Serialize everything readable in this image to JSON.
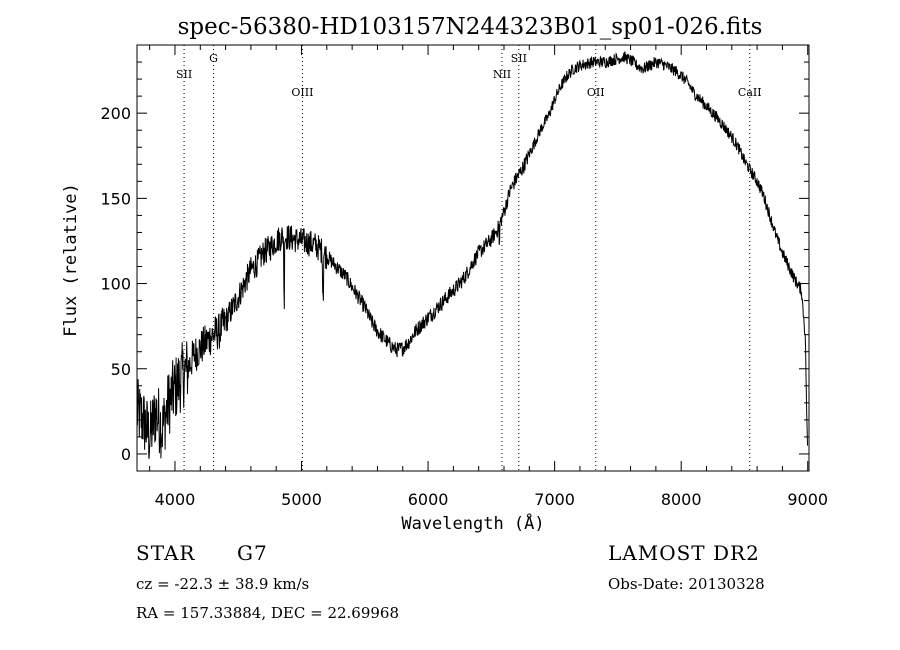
{
  "chart_data": {
    "type": "line",
    "title": "spec-56380-HD103157N244323B01_sp01-026.fits",
    "xlabel": "Wavelength (Å)",
    "ylabel": "Flux (relative)",
    "xlim": [
      3700,
      9010
    ],
    "ylim": [
      -10,
      240
    ],
    "xticks": [
      4000,
      5000,
      6000,
      7000,
      8000,
      9000
    ],
    "yticks": [
      0,
      50,
      100,
      150,
      200
    ],
    "grid": false,
    "lines": [
      {
        "label": "SII",
        "x": 4072
      },
      {
        "label": "G",
        "x": 4305
      },
      {
        "label": "OIII",
        "x": 5007
      },
      {
        "label": "NII",
        "x": 6584
      },
      {
        "label": "SII",
        "x": 6717
      },
      {
        "label": "OII",
        "x": 7325
      },
      {
        "label": "CaII",
        "x": 8542
      }
    ],
    "series": [
      {
        "x": [
          3700,
          3750,
          3800,
          3850,
          3900,
          3950,
          4000,
          4050,
          4100,
          4150,
          4200,
          4250,
          4300,
          4350,
          4400,
          4450,
          4500,
          4550,
          4600,
          4650,
          4700,
          4750,
          4800,
          4850,
          4900,
          4950,
          5000,
          5050,
          5100,
          5150,
          5200,
          5250,
          5300,
          5350,
          5400,
          5450,
          5500,
          5550,
          5600,
          5650,
          5700,
          5750,
          5800,
          5850,
          5900,
          5950,
          6000,
          6050,
          6100,
          6150,
          6200,
          6250,
          6300,
          6350,
          6400,
          6450,
          6500,
          6550,
          6600,
          6650,
          6700,
          6750,
          6800,
          6850,
          6900,
          6950,
          7000,
          7050,
          7100,
          7150,
          7200,
          7250,
          7300,
          7350,
          7400,
          7450,
          7500,
          7550,
          7600,
          7650,
          7700,
          7750,
          7800,
          7850,
          7900,
          7950,
          8000,
          8050,
          8100,
          8150,
          8200,
          8250,
          8300,
          8350,
          8400,
          8450,
          8500,
          8550,
          8600,
          8650,
          8700,
          8750,
          8800,
          8850,
          8900,
          8950,
          8980,
          9000
        ],
        "values": [
          25,
          20,
          10,
          25,
          15,
          30,
          38,
          45,
          50,
          58,
          62,
          66,
          70,
          72,
          78,
          85,
          92,
          100,
          108,
          112,
          118,
          121,
          125,
          128,
          127,
          126,
          125,
          124,
          123,
          120,
          116,
          112,
          108,
          104,
          98,
          92,
          86,
          78,
          72,
          68,
          64,
          61,
          62,
          66,
          72,
          76,
          80,
          84,
          88,
          92,
          96,
          100,
          105,
          112,
          118,
          122,
          126,
          132,
          142,
          155,
          162,
          168,
          176,
          184,
          192,
          198,
          208,
          216,
          222,
          226,
          228,
          229,
          230,
          230,
          230,
          231,
          232,
          233,
          231,
          228,
          226,
          228,
          230,
          229,
          227,
          225,
          222,
          218,
          212,
          208,
          204,
          200,
          196,
          191,
          186,
          180,
          172,
          166,
          160,
          152,
          140,
          128,
          118,
          110,
          102,
          96,
          70,
          -5
        ]
      }
    ]
  },
  "info": {
    "object_class": "STAR",
    "subclass": "G7",
    "survey": "LAMOST DR2",
    "cz": "cz = -22.3 ± 38.9 km/s",
    "obs_date": "Obs-Date: 20130328",
    "coords": "RA = 157.33884, DEC =  22.69968"
  }
}
